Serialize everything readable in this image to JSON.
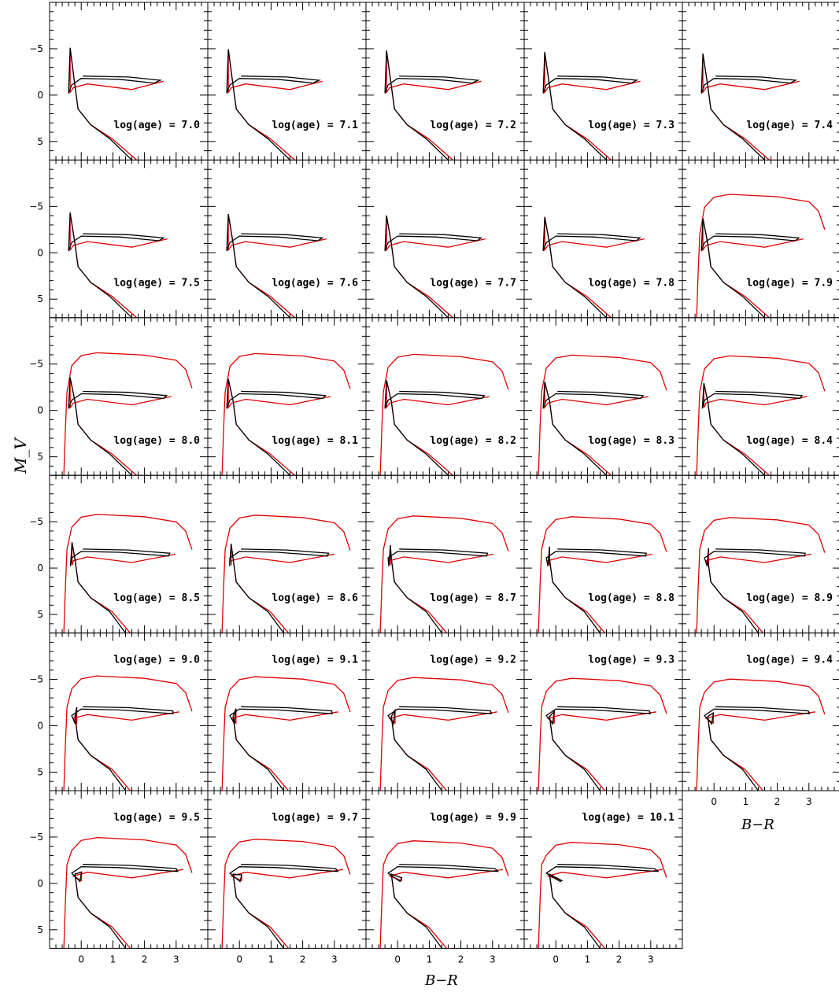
{
  "chart_data": {
    "type": "line",
    "layout": "grid of 29 small multiples, 5 columns x 6 rows",
    "ylabel": "M_V",
    "xlabel": "B−R",
    "ylim": [
      7,
      -10
    ],
    "xlim": [
      -1,
      4
    ],
    "yticks": [
      "-5",
      "0",
      "5"
    ],
    "xticks": [
      "0",
      "1",
      "2",
      "3"
    ],
    "series_colors": {
      "black": "#000000",
      "red": "#e00000"
    },
    "panels": [
      {
        "label": "log(age) = 7.0",
        "age": 7.0
      },
      {
        "label": "log(age) = 7.1",
        "age": 7.1
      },
      {
        "label": "log(age) = 7.2",
        "age": 7.2
      },
      {
        "label": "log(age) = 7.3",
        "age": 7.3
      },
      {
        "label": "log(age) = 7.4",
        "age": 7.4
      },
      {
        "label": "log(age) = 7.5",
        "age": 7.5
      },
      {
        "label": "log(age) = 7.6",
        "age": 7.6
      },
      {
        "label": "log(age) = 7.7",
        "age": 7.7
      },
      {
        "label": "log(age) = 7.8",
        "age": 7.8
      },
      {
        "label": "log(age) = 7.9",
        "age": 7.9
      },
      {
        "label": "log(age) = 8.0",
        "age": 8.0
      },
      {
        "label": "log(age) = 8.1",
        "age": 8.1
      },
      {
        "label": "log(age) = 8.2",
        "age": 8.2
      },
      {
        "label": "log(age) = 8.3",
        "age": 8.3
      },
      {
        "label": "log(age) = 8.4",
        "age": 8.4
      },
      {
        "label": "log(age) = 8.5",
        "age": 8.5
      },
      {
        "label": "log(age) = 8.6",
        "age": 8.6
      },
      {
        "label": "log(age) = 8.7",
        "age": 8.7
      },
      {
        "label": "log(age) = 8.8",
        "age": 8.8
      },
      {
        "label": "log(age) = 8.9",
        "age": 8.9
      },
      {
        "label": "log(age) = 9.0",
        "age": 9.0
      },
      {
        "label": "log(age) = 9.1",
        "age": 9.1
      },
      {
        "label": "log(age) = 9.2",
        "age": 9.2
      },
      {
        "label": "log(age) = 9.3",
        "age": 9.3
      },
      {
        "label": "log(age) = 9.4",
        "age": 9.4
      },
      {
        "label": "log(age) = 9.5",
        "age": 9.5
      },
      {
        "label": "log(age) = 9.7",
        "age": 9.7
      },
      {
        "label": "log(age) = 9.9",
        "age": 9.9
      },
      {
        "label": "log(age) = 10.1",
        "age": 10.1
      }
    ]
  }
}
